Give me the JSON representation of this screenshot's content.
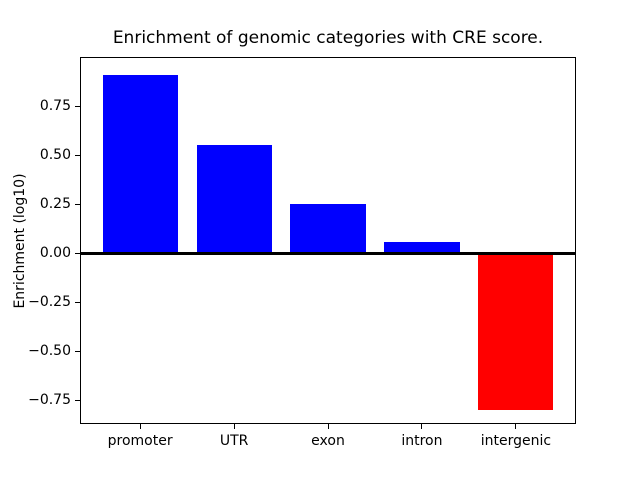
{
  "chart_data": {
    "type": "bar",
    "title": "Enrichment of genomic categories with CRE score.",
    "xlabel": "",
    "ylabel": "Enrichment (log10)",
    "categories": [
      "promoter",
      "UTR",
      "exon",
      "intron",
      "intergenic"
    ],
    "values": [
      0.91,
      0.55,
      0.25,
      0.06,
      -0.8
    ],
    "bar_colors": [
      "#0000ff",
      "#0000ff",
      "#0000ff",
      "#0000ff",
      "#ff0000"
    ],
    "positive_color": "#0000ff",
    "negative_color": "#ff0000",
    "yticks": [
      0.75,
      0.5,
      0.25,
      0.0,
      -0.25,
      -0.5,
      -0.75
    ],
    "ytick_labels": [
      "0.75",
      "0.50",
      "0.25",
      "0.00",
      "−0.25",
      "−0.50",
      "−0.75"
    ],
    "ylim": [
      -0.87,
      1.0
    ],
    "bar_width_fraction": 0.8,
    "grid": false,
    "zero_line": true,
    "legend": null,
    "background_color": "#ffffff",
    "axis_color": "#000000"
  }
}
